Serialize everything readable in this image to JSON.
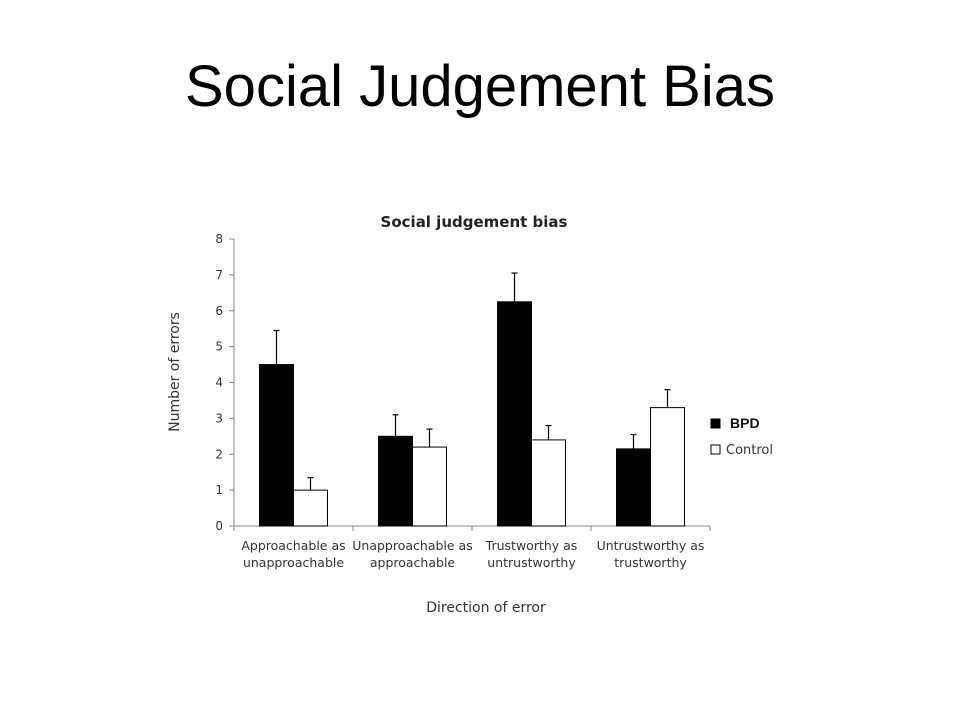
{
  "slide": {
    "title": "Social Judgement Bias"
  },
  "chart_data": {
    "type": "bar",
    "title": "Social judgement bias",
    "xlabel": "Direction of error",
    "ylabel": "Number of errors",
    "ylim": [
      0,
      8
    ],
    "yticks": [
      "0",
      "1",
      "2",
      "3",
      "4",
      "5",
      "6",
      "7",
      "8"
    ],
    "categories": [
      [
        "Approachable as",
        "unapproachable"
      ],
      [
        "Unapproachable as",
        "approachable"
      ],
      [
        "Trustworthy as",
        "untrustworthy"
      ],
      [
        "Untrustworthy as",
        "trustworthy"
      ]
    ],
    "series": [
      {
        "name": "BPD",
        "values": [
          4.5,
          2.5,
          6.25,
          2.15
        ],
        "errors": [
          0.95,
          0.6,
          0.8,
          0.4
        ],
        "color": "#000000"
      },
      {
        "name": "Control",
        "values": [
          1.0,
          2.2,
          2.4,
          3.3
        ],
        "errors": [
          0.35,
          0.5,
          0.4,
          0.5
        ],
        "color": "#ffffff"
      }
    ],
    "legend_position": "right",
    "grid": false
  }
}
